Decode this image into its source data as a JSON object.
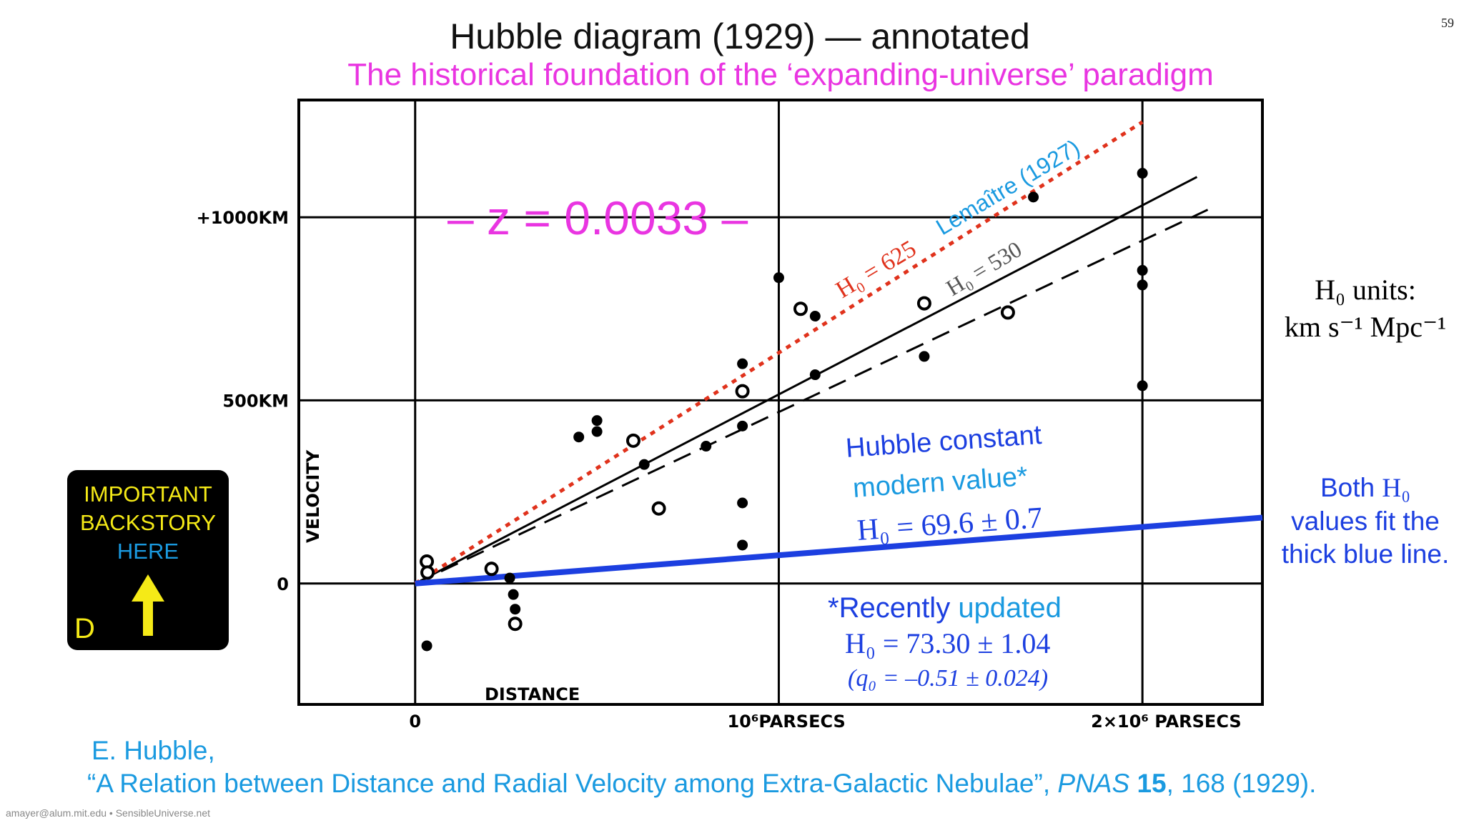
{
  "slide": {
    "title": "Hubble diagram (1929) — annotated",
    "subtitle": "The historical foundation of the ‘expanding-universe’ paradigm",
    "number": "59",
    "footer": "amayer@alum.mit.edu • SensibleUniverse.net"
  },
  "annotations": {
    "z_value": "– z = 0.0033 –",
    "h0_625": "H₀ = 625",
    "lemaitre": "Lemaître (1927)",
    "h0_530": "H₀ = 530",
    "hubble_const_1": "Hubble constant",
    "hubble_const_2": "modern value*",
    "hubble_const_3": "H₀ = 69.6 ± 0.7",
    "recent_1": "*Recently ",
    "recent_2": "updated",
    "recent_3": "H₀ = 73.30 ± 1.04",
    "recent_4": "(q₀ = –0.51 ± 0.024)"
  },
  "units_box": {
    "line1": "H₀ units:",
    "line2": "km s⁻¹ Mpc⁻¹"
  },
  "both_note": {
    "prefix": "Both ",
    "h0": "H₀",
    "line2": "values fit the",
    "line3": "thick blue line."
  },
  "backstory_box": {
    "line1": "IMPORTANT",
    "line2": "BACKSTORY",
    "line3": "HERE",
    "letter": "D"
  },
  "citation": {
    "line1": "E. Hubble,",
    "quote": "“A Relation between Distance and Radial Velocity among Extra-Galactic Nebulae”, ",
    "journal": "PNAS",
    "volume": "15",
    "rest": ", 168 (1929)."
  },
  "colors": {
    "title": "#111111",
    "subtitle": "#e935e1",
    "red_dotted": "#e0321c",
    "lemaitre": "#1a9ae0",
    "blue_line": "#1c3fe0",
    "annotation_blue": "#1c3fe0",
    "updated_cyan": "#1a9ae0",
    "backstory_yellow": "#f5ea17",
    "backstory_blue": "#1a9ae0"
  },
  "chart_data": {
    "type": "scatter",
    "xlabel": "DISTANCE",
    "ylabel": "VELOCITY",
    "xunit": "parsecs",
    "yunit": "km",
    "xlim": [
      -0.32,
      2.33
    ],
    "ylim": [
      -330,
      1320
    ],
    "xticks": [
      {
        "value": 0,
        "label": "0"
      },
      {
        "value": 1,
        "label": "10⁶PARSECS"
      },
      {
        "value": 2,
        "label": "2×10⁶ PARSECS"
      }
    ],
    "yticks": [
      {
        "value": 0,
        "label": "0"
      },
      {
        "value": 500,
        "label": "500KM"
      },
      {
        "value": 1000,
        "label": "+1000KM"
      }
    ],
    "grid": true,
    "series": [
      {
        "marker": "filled",
        "points": [
          [
            0.032,
            -170
          ],
          [
            0.21,
            45
          ],
          [
            0.26,
            15
          ],
          [
            0.27,
            -30
          ],
          [
            0.275,
            -70
          ],
          [
            0.45,
            400
          ],
          [
            0.5,
            415
          ],
          [
            0.5,
            445
          ],
          [
            0.63,
            325
          ],
          [
            0.8,
            375
          ],
          [
            0.9,
            600
          ],
          [
            0.9,
            430
          ],
          [
            0.9,
            220
          ],
          [
            0.9,
            105
          ],
          [
            1.0,
            835
          ],
          [
            1.1,
            730
          ],
          [
            1.1,
            570
          ],
          [
            1.4,
            620
          ],
          [
            1.4,
            760
          ],
          [
            1.7,
            1055
          ],
          [
            2.0,
            1120
          ],
          [
            2.0,
            855
          ],
          [
            2.0,
            815
          ],
          [
            2.0,
            540
          ]
        ]
      },
      {
        "marker": "open",
        "points": [
          [
            0.032,
            60
          ],
          [
            0.034,
            30
          ],
          [
            0.21,
            40
          ],
          [
            0.275,
            -110
          ],
          [
            0.6,
            390
          ],
          [
            0.67,
            205
          ],
          [
            0.9,
            525
          ],
          [
            1.06,
            750
          ],
          [
            1.4,
            765
          ],
          [
            1.63,
            740
          ]
        ]
      }
    ],
    "fit_lines": [
      {
        "style": "solid",
        "color": "#000000",
        "x": [
          0,
          2.15
        ],
        "y": [
          0,
          1110
        ]
      },
      {
        "style": "dashed",
        "color": "#000000",
        "x": [
          0,
          2.2
        ],
        "y": [
          0,
          1030
        ]
      },
      {
        "style": "dotted",
        "color": "#e0321c",
        "name": "H₀ = 625",
        "x": [
          0,
          2.0
        ],
        "y": [
          0,
          1260
        ]
      },
      {
        "style": "thick",
        "color": "#1c3fe0",
        "x": [
          0,
          2.33
        ],
        "y": [
          0,
          180
        ]
      }
    ]
  }
}
